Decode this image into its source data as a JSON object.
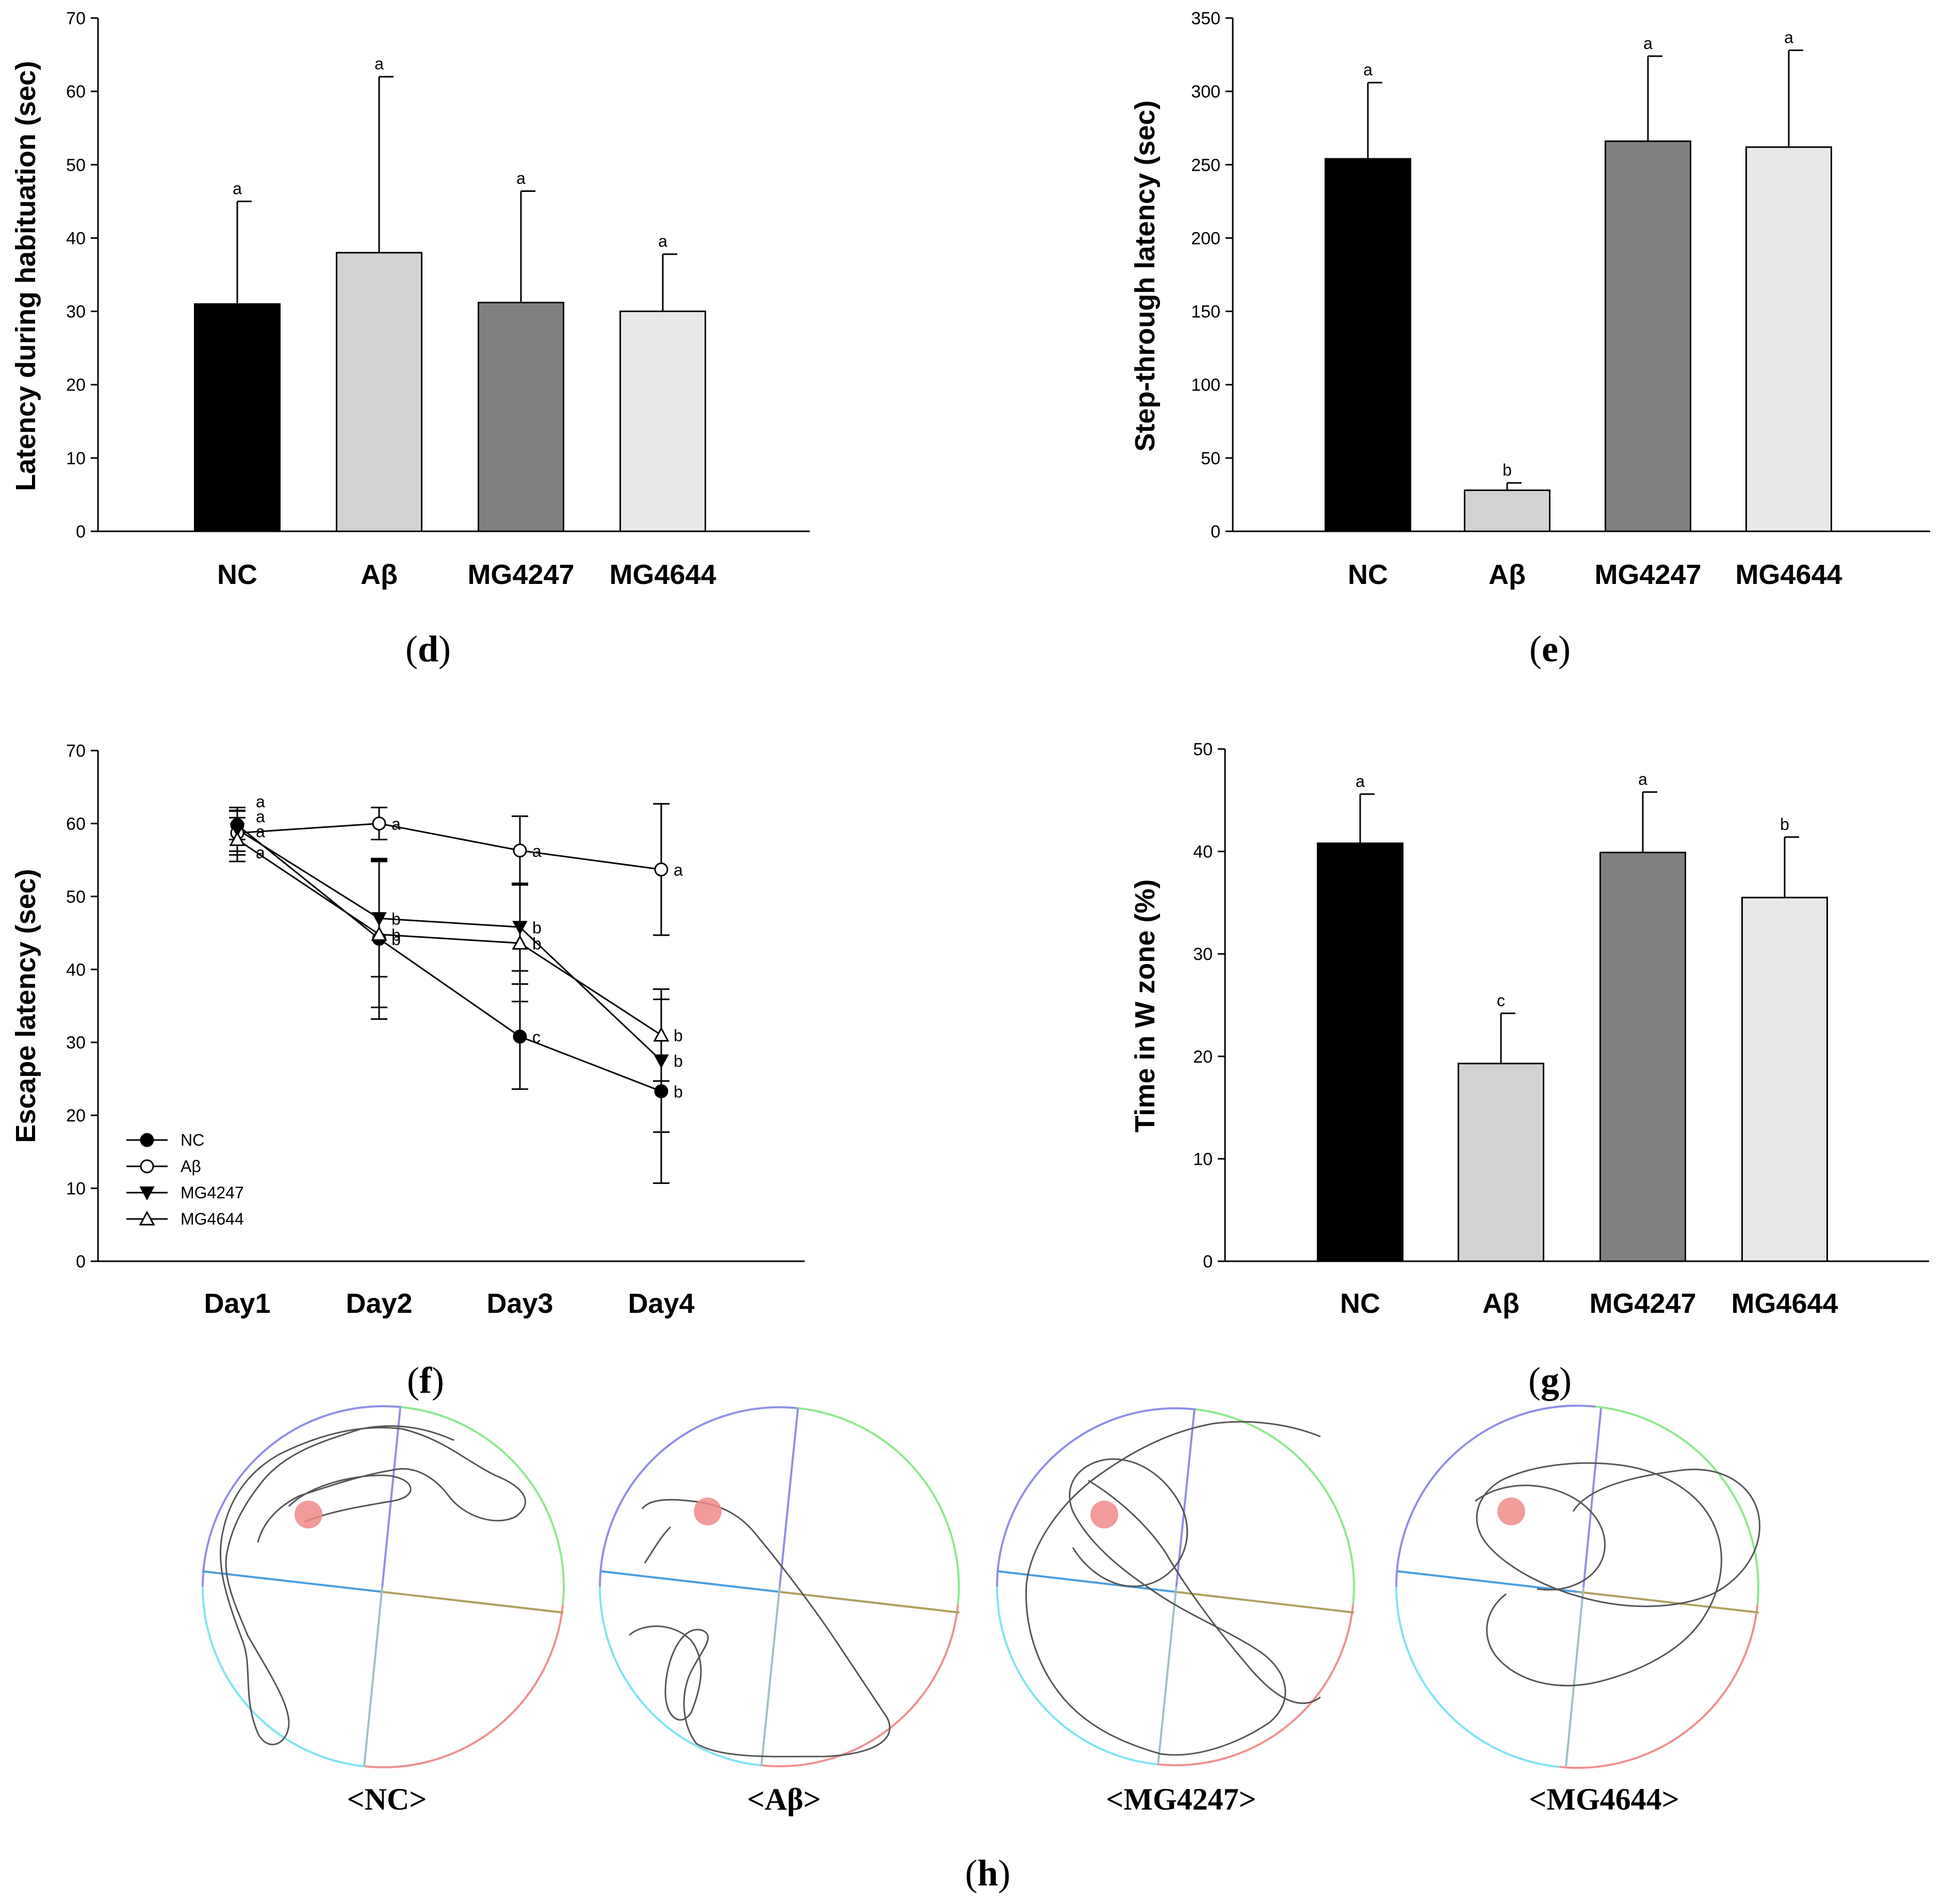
{
  "chart_data": [
    {
      "id": "d",
      "panel_label": "d",
      "type": "bar",
      "ylabel": "Latency during habituation (sec)",
      "ylim": [
        0,
        70
      ],
      "yticks": [
        0,
        10,
        20,
        30,
        40,
        50,
        60,
        70
      ],
      "categories": [
        "NC",
        "Aβ",
        "MG4247",
        "MG4644"
      ],
      "values": [
        31,
        38,
        31.2,
        30
      ],
      "errors": [
        14,
        24,
        15.2,
        7.8
      ],
      "letters": [
        "a",
        "a",
        "a",
        "a"
      ],
      "colors": [
        "#000000",
        "#d2d2d2",
        "#808080",
        "#e8e8e8"
      ]
    },
    {
      "id": "e",
      "panel_label": "e",
      "type": "bar",
      "ylabel": "Step-through latency (sec)",
      "ylim": [
        0,
        350
      ],
      "yticks": [
        0,
        50,
        100,
        150,
        200,
        250,
        300,
        350
      ],
      "categories": [
        "NC",
        "Aβ",
        "MG4247",
        "MG4644"
      ],
      "values": [
        254,
        28,
        266,
        262
      ],
      "errors": [
        52,
        5,
        58,
        66
      ],
      "letters": [
        "a",
        "b",
        "a",
        "a"
      ],
      "colors": [
        "#000000",
        "#d2d2d2",
        "#808080",
        "#e8e8e8"
      ]
    },
    {
      "id": "f",
      "panel_label": "f",
      "type": "line",
      "ylabel": "Escape latency (sec)",
      "ylim": [
        0,
        70
      ],
      "yticks": [
        0,
        10,
        20,
        30,
        40,
        50,
        60,
        70
      ],
      "categories": [
        "Day1",
        "Day2",
        "Day3",
        "Day4"
      ],
      "series": [
        {
          "name": "NC",
          "marker": "circle-filled",
          "values": [
            59.8,
            44.2,
            30.8,
            23.3
          ],
          "errors": [
            2,
            11,
            7.2,
            12.6
          ],
          "letters": [
            "a",
            "b",
            "c",
            "b"
          ]
        },
        {
          "name": "Aβ",
          "marker": "circle-open",
          "values": [
            58.7,
            60,
            56.3,
            53.7
          ],
          "errors": [
            3,
            2.2,
            4.7,
            9
          ],
          "letters": [
            "a",
            "a",
            "a",
            "a"
          ]
        },
        {
          "name": "MG4247",
          "marker": "triangle-down-filled",
          "values": [
            59.2,
            47,
            45.8,
            27.5
          ],
          "errors": [
            3,
            8,
            6,
            9.8
          ],
          "letters": [
            "a",
            "b",
            "b",
            "b"
          ]
        },
        {
          "name": "MG4644",
          "marker": "triangle-up-open",
          "values": [
            57.8,
            44.8,
            43.6,
            31
          ],
          "errors": [
            3,
            10,
            8,
            6.3
          ],
          "letters": [
            "a",
            "b",
            "b",
            "b"
          ]
        }
      ]
    },
    {
      "id": "g",
      "panel_label": "g",
      "type": "bar",
      "ylabel": "Time in W zone (%)",
      "ylim": [
        0,
        50
      ],
      "yticks": [
        0,
        10,
        20,
        30,
        40,
        50
      ],
      "categories": [
        "NC",
        "Aβ",
        "MG4247",
        "MG4644"
      ],
      "values": [
        40.8,
        19.3,
        39.9,
        35.5
      ],
      "errors": [
        4.8,
        4.9,
        5.9,
        5.9
      ],
      "letters": [
        "a",
        "c",
        "a",
        "b"
      ],
      "colors": [
        "#000000",
        "#d2d2d2",
        "#808080",
        "#e8e8e8"
      ]
    }
  ],
  "tracks": {
    "panel_label": "h",
    "labels": [
      "<NC>",
      "<Aβ>",
      "<MG4247>",
      "<MG4644>"
    ]
  },
  "colors": {
    "quadrant_nw": "#8f8fe8",
    "quadrant_ne": "#8fe88f",
    "quadrant_se": "#f09090",
    "quadrant_sw": "#80e4f0",
    "divider_w": "#4a9ee0",
    "divider_e": "#b0a060",
    "platform": "#f08a8a",
    "track": "#555555"
  }
}
